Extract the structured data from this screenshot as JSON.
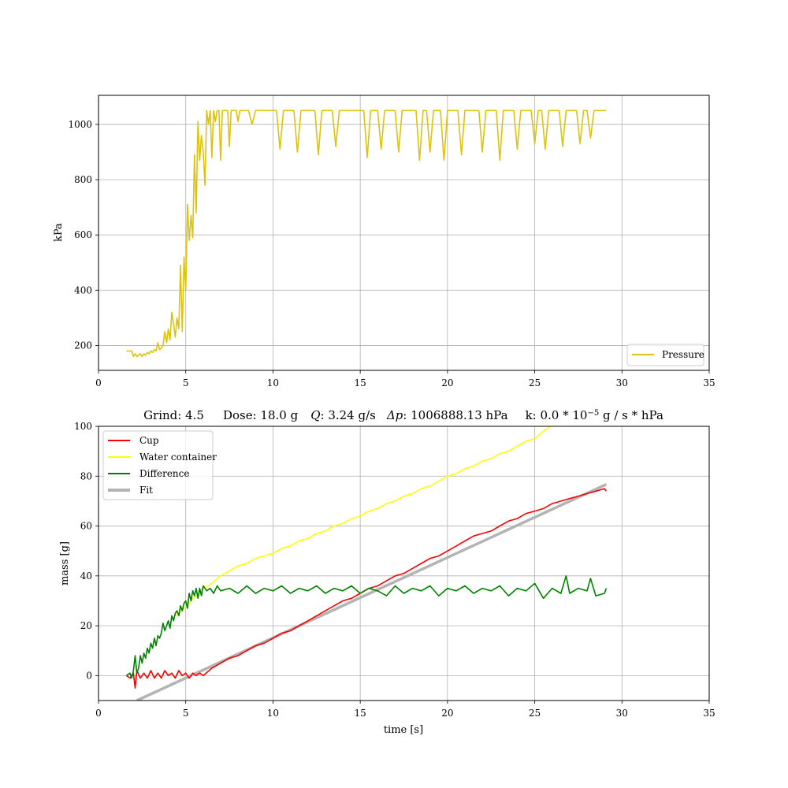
{
  "chart_data": [
    {
      "type": "line",
      "title": "",
      "xlabel": "",
      "ylabel": "kPa",
      "xlim": [
        0,
        35
      ],
      "ylim": [
        110,
        1105
      ],
      "xticks": [
        0,
        5,
        10,
        15,
        20,
        25,
        30,
        35
      ],
      "yticks": [
        200,
        400,
        600,
        800,
        1000
      ],
      "grid": true,
      "legend_position": "lower-right",
      "series": [
        {
          "name": "Pressure",
          "color": "#ddc30e",
          "x": [
            1.6,
            1.8,
            1.9,
            2.0,
            2.1,
            2.2,
            2.3,
            2.4,
            2.5,
            2.6,
            2.7,
            2.8,
            2.9,
            3.0,
            3.1,
            3.2,
            3.3,
            3.4,
            3.5,
            3.6,
            3.7,
            3.8,
            3.9,
            4.0,
            4.1,
            4.2,
            4.3,
            4.4,
            4.5,
            4.6,
            4.7,
            4.8,
            4.9,
            5.0,
            5.1,
            5.2,
            5.3,
            5.4,
            5.5,
            5.6,
            5.7,
            5.8,
            5.9,
            6.0,
            6.1,
            6.2,
            6.3,
            6.4,
            6.5,
            6.6,
            6.7,
            6.8,
            6.9,
            7.0,
            7.1,
            7.2,
            7.3,
            7.4,
            7.5,
            7.6,
            7.7,
            7.8,
            7.9,
            8.0,
            8.1,
            8.2,
            8.4,
            8.6,
            8.8,
            9.0,
            9.2,
            9.4,
            9.6,
            9.8,
            10.0,
            10.2,
            10.4,
            10.6,
            10.8,
            11.0,
            11.2,
            11.4,
            11.6,
            11.8,
            12.0,
            12.2,
            12.4,
            12.6,
            12.8,
            13.0,
            13.2,
            13.4,
            13.6,
            13.8,
            14.0,
            14.2,
            14.4,
            14.6,
            14.8,
            15.0,
            15.2,
            15.4,
            15.6,
            15.8,
            16.0,
            16.2,
            16.4,
            16.6,
            16.8,
            17.0,
            17.2,
            17.4,
            17.6,
            17.8,
            18.0,
            18.2,
            18.4,
            18.6,
            18.8,
            19.0,
            19.2,
            19.4,
            19.6,
            19.8,
            20.0,
            20.2,
            20.4,
            20.6,
            20.8,
            21.0,
            21.2,
            21.4,
            21.6,
            21.8,
            22.0,
            22.2,
            22.4,
            22.6,
            22.8,
            23.0,
            23.2,
            23.4,
            23.6,
            23.8,
            24.0,
            24.2,
            24.4,
            24.6,
            24.8,
            25.0,
            25.2,
            25.4,
            25.6,
            25.8,
            26.0,
            26.2,
            26.4,
            26.6,
            26.8,
            27.0,
            27.2,
            27.4,
            27.6,
            27.8,
            28.0,
            28.2,
            28.4,
            28.6,
            28.8,
            29.0,
            29.1
          ],
          "values": [
            180,
            180,
            180,
            160,
            170,
            160,
            165,
            170,
            160,
            170,
            165,
            175,
            170,
            180,
            175,
            185,
            180,
            210,
            185,
            190,
            200,
            250,
            210,
            260,
            220,
            320,
            280,
            230,
            300,
            260,
            490,
            250,
            520,
            400,
            710,
            580,
            670,
            590,
            890,
            680,
            1010,
            870,
            960,
            900,
            780,
            1050,
            1000,
            1050,
            880,
            1050,
            1010,
            1050,
            1050,
            870,
            1050,
            1050,
            1050,
            1050,
            920,
            1050,
            1050,
            1050,
            1050,
            1010,
            1050,
            1050,
            1050,
            1050,
            1000,
            1050,
            1050,
            1050,
            1050,
            1050,
            1050,
            1050,
            910,
            1050,
            1050,
            1050,
            1050,
            900,
            1050,
            1050,
            1050,
            1050,
            1050,
            890,
            1050,
            1050,
            1050,
            1050,
            920,
            1050,
            1050,
            1050,
            1050,
            1050,
            1050,
            1050,
            1050,
            880,
            1050,
            1050,
            1050,
            910,
            1050,
            1050,
            1050,
            1050,
            900,
            1050,
            1050,
            1050,
            1050,
            1050,
            870,
            1050,
            1050,
            900,
            1050,
            1050,
            1050,
            870,
            1050,
            1050,
            1050,
            1050,
            890,
            1050,
            1050,
            1050,
            1050,
            1050,
            900,
            1050,
            1050,
            1050,
            1050,
            870,
            1050,
            1050,
            1050,
            1050,
            910,
            1050,
            1050,
            1050,
            1050,
            930,
            1050,
            1050,
            910,
            1050,
            1050,
            1050,
            1050,
            920,
            1050,
            1050,
            1050,
            1050,
            930,
            1050,
            1050,
            950,
            1050,
            1050,
            1050,
            1050,
            1050
          ]
        }
      ]
    },
    {
      "type": "line",
      "title": "Grind: 4.5      Dose: 18.0 g    Q: 3.24 g/s   Δp:  1006888.13 hPa     k: 0.0 * 10⁻5 g / s * hPa",
      "title_parts": {
        "grind": "Grind: 4.5",
        "dose": "Dose: 18.0 g",
        "q_symbol": "Q",
        "q_value": ": 3.24 g/s",
        "dp_symbol": "Δp",
        "dp_value": ":  1006888.13 hPa",
        "k_text": "k: 0.0 * 10",
        "k_exp": "−5",
        "k_unit": " g / s * hPa"
      },
      "xlabel": "time [s]",
      "ylabel": "mass [g]",
      "xlim": [
        0,
        35
      ],
      "ylim": [
        -10,
        100
      ],
      "xticks": [
        0,
        5,
        10,
        15,
        20,
        25,
        30,
        35
      ],
      "yticks": [
        0,
        20,
        40,
        60,
        80,
        100
      ],
      "grid": true,
      "legend_position": "upper-left",
      "series": [
        {
          "name": "Cup",
          "color": "#ff0000",
          "x": [
            1.6,
            1.8,
            2.0,
            2.1,
            2.2,
            2.4,
            2.6,
            2.8,
            3.0,
            3.2,
            3.4,
            3.6,
            3.8,
            4.0,
            4.2,
            4.4,
            4.6,
            4.8,
            5.0,
            5.2,
            5.4,
            5.6,
            5.8,
            6.0,
            6.5,
            7.0,
            7.5,
            8.0,
            8.5,
            9.0,
            9.5,
            10.0,
            10.5,
            11.0,
            11.5,
            12.0,
            12.5,
            13.0,
            13.5,
            14.0,
            14.5,
            15.0,
            15.5,
            16.0,
            16.5,
            17.0,
            17.5,
            18.0,
            18.5,
            19.0,
            19.5,
            20.0,
            20.5,
            21.0,
            21.5,
            22.0,
            22.5,
            23.0,
            23.5,
            24.0,
            24.5,
            25.0,
            25.5,
            26.0,
            26.5,
            27.0,
            27.5,
            28.0,
            28.5,
            29.0,
            29.1
          ],
          "values": [
            0,
            -1,
            1,
            -5,
            2,
            -1,
            1,
            -1,
            2,
            -1,
            1,
            -1,
            2,
            0,
            1,
            -1,
            2,
            0,
            1,
            -1,
            1,
            0,
            1,
            0,
            3,
            5,
            7,
            8,
            10,
            12,
            13,
            15,
            17,
            18,
            20,
            22,
            24,
            26,
            28,
            30,
            31,
            33,
            35,
            36,
            38,
            40,
            41,
            43,
            45,
            47,
            48,
            50,
            52,
            54,
            56,
            57,
            58,
            60,
            62,
            63,
            65,
            66,
            67,
            69,
            70,
            71,
            72,
            73,
            74,
            75,
            74
          ]
        },
        {
          "name": "Water container",
          "color": "#ffff00",
          "x": [
            4.4,
            4.6,
            4.8,
            5.0,
            5.2,
            5.4,
            5.6,
            5.8,
            6.0,
            6.5,
            7.0,
            7.5,
            8.0,
            8.5,
            9.0,
            9.5,
            10.0,
            10.5,
            11.0,
            11.5,
            12.0,
            12.5,
            13.0,
            13.5,
            14.0,
            14.5,
            15.0,
            15.5,
            16.0,
            16.5,
            17.0,
            17.5,
            18.0,
            18.5,
            19.0,
            19.5,
            20.0,
            20.5,
            21.0,
            21.5,
            22.0,
            22.5,
            23.0,
            23.5,
            24.0,
            24.5,
            25.0,
            25.5,
            25.9
          ],
          "values": [
            24,
            25,
            26,
            28,
            29,
            31,
            32,
            33,
            35,
            37,
            40,
            42,
            44,
            45,
            47,
            48,
            49,
            51,
            52,
            54,
            55,
            57,
            58,
            60,
            61,
            63,
            64,
            66,
            67,
            69,
            70,
            72,
            73,
            75,
            76,
            78,
            80,
            81,
            83,
            84,
            86,
            87,
            89,
            90,
            92,
            94,
            95,
            98,
            100
          ]
        },
        {
          "name": "Difference",
          "color": "#008000",
          "x": [
            1.6,
            1.8,
            1.9,
            2.0,
            2.1,
            2.2,
            2.3,
            2.4,
            2.5,
            2.6,
            2.7,
            2.8,
            2.9,
            3.0,
            3.1,
            3.2,
            3.3,
            3.4,
            3.5,
            3.6,
            3.7,
            3.8,
            3.9,
            4.0,
            4.1,
            4.2,
            4.3,
            4.4,
            4.5,
            4.6,
            4.7,
            4.8,
            4.9,
            5.0,
            5.1,
            5.2,
            5.3,
            5.4,
            5.5,
            5.6,
            5.7,
            5.8,
            5.9,
            6.0,
            6.2,
            6.4,
            6.6,
            6.8,
            7.0,
            7.5,
            8.0,
            8.5,
            9.0,
            9.5,
            10.0,
            10.5,
            11.0,
            11.5,
            12.0,
            12.5,
            13.0,
            13.5,
            14.0,
            14.5,
            15.0,
            15.5,
            16.0,
            16.5,
            17.0,
            17.5,
            18.0,
            18.5,
            19.0,
            19.5,
            20.0,
            20.5,
            21.0,
            21.5,
            22.0,
            22.5,
            23.0,
            23.5,
            24.0,
            24.5,
            25.0,
            25.5,
            26.0,
            26.5,
            26.8,
            27.0,
            27.5,
            28.0,
            28.2,
            28.5,
            29.0,
            29.1
          ],
          "values": [
            0,
            1,
            -1,
            2,
            8,
            1,
            3,
            8,
            5,
            9,
            7,
            11,
            9,
            13,
            11,
            15,
            12,
            16,
            15,
            17,
            21,
            18,
            20,
            22,
            19,
            24,
            22,
            25,
            26,
            24,
            28,
            26,
            29,
            30,
            27,
            33,
            30,
            34,
            32,
            35,
            31,
            35,
            32,
            36,
            34,
            35,
            33,
            36,
            34,
            35,
            33,
            36,
            33,
            35,
            34,
            36,
            33,
            35,
            34,
            36,
            33,
            35,
            34,
            36,
            33,
            35,
            34,
            32,
            36,
            33,
            35,
            34,
            36,
            32,
            35,
            34,
            36,
            33,
            35,
            34,
            36,
            32,
            35,
            34,
            37,
            31,
            35,
            33,
            40,
            33,
            35,
            34,
            39,
            32,
            33,
            35
          ]
        },
        {
          "name": "Fit",
          "color": "#b3b3b3",
          "x": [
            2.2,
            29.1
          ],
          "values": [
            -10,
            76.7
          ]
        }
      ]
    }
  ]
}
